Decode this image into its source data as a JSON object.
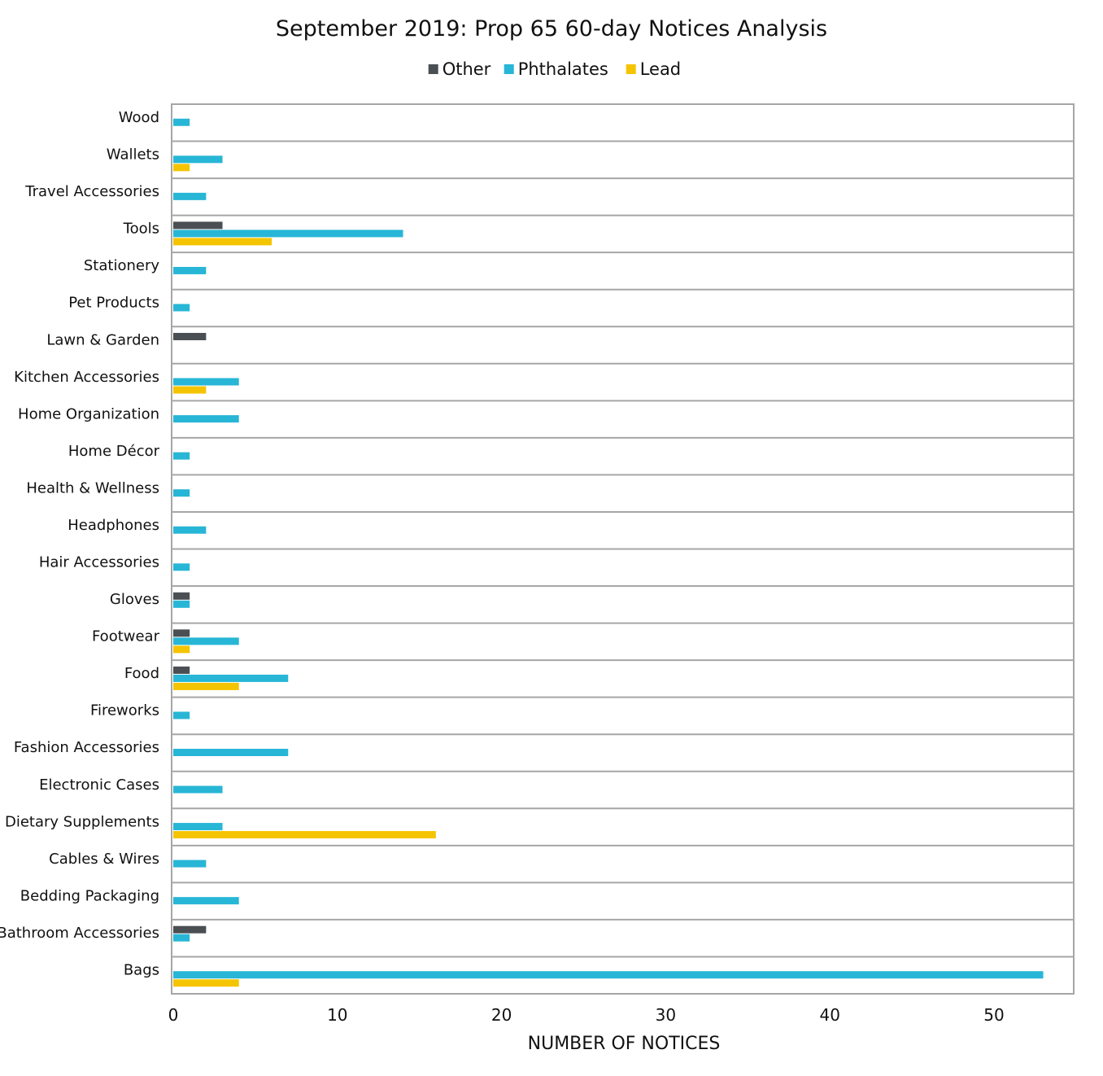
{
  "chart_data": {
    "type": "bar",
    "orientation": "horizontal",
    "title": "September 2019: Prop 65 60-day Notices Analysis",
    "xlabel": "NUMBER OF NOTICES",
    "ylabel": "",
    "xlim": [
      0,
      55
    ],
    "xticks": [
      0,
      10,
      20,
      30,
      40,
      50
    ],
    "grid": "horizontal category separators",
    "legend_position": "top-center",
    "categories": [
      "Wood",
      "Wallets",
      "Travel Accessories",
      "Tools",
      "Stationery",
      "Pet Products",
      "Lawn & Garden",
      "Kitchen Accessories",
      "Home Organization",
      "Home Décor",
      "Health & Wellness",
      "Headphones",
      "Hair Accessories",
      "Gloves",
      "Footwear",
      "Food",
      "Fireworks",
      "Fashion Accessories",
      "Electronic Cases",
      "Dietary Supplements",
      "Cables & Wires",
      "Bedding Packaging",
      "Bathroom Accessories",
      "Bags"
    ],
    "series": [
      {
        "name": "Other",
        "color": "#4a4f54",
        "values": [
          0,
          0,
          0,
          3,
          0,
          0,
          2,
          0,
          0,
          0,
          0,
          0,
          0,
          1,
          1,
          1,
          0,
          0,
          0,
          0,
          0,
          0,
          2,
          0
        ]
      },
      {
        "name": "Phthalates",
        "color": "#27b6d6",
        "values": [
          1,
          3,
          2,
          14,
          2,
          1,
          0,
          4,
          4,
          1,
          1,
          2,
          1,
          1,
          4,
          7,
          1,
          7,
          3,
          3,
          2,
          4,
          1,
          53
        ]
      },
      {
        "name": "Lead",
        "color": "#f5c400",
        "values": [
          0,
          1,
          0,
          6,
          0,
          0,
          0,
          2,
          0,
          0,
          0,
          0,
          0,
          0,
          1,
          4,
          0,
          0,
          0,
          16,
          0,
          0,
          0,
          4
        ]
      }
    ]
  }
}
